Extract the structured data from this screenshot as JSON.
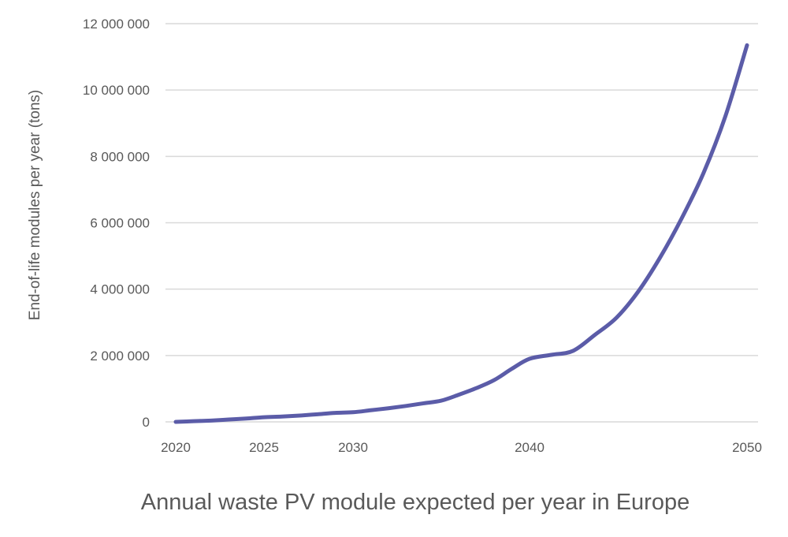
{
  "chart_data": {
    "type": "line",
    "title": "Annual waste PV module expected per year in Europe",
    "xlabel": "",
    "ylabel": "End-of-life modules per year (tons)",
    "ylim": [
      0,
      12000000
    ],
    "yticks": [
      0,
      2000000,
      4000000,
      6000000,
      8000000,
      10000000,
      12000000
    ],
    "ytick_labels": [
      "0",
      "2 000 000",
      "4 000 000",
      "6 000 000",
      "8 000 000",
      "10 000 000",
      "12 000 000"
    ],
    "xticks": [
      2020,
      2025,
      2030,
      2040,
      2050
    ],
    "xtick_labels": [
      "2020",
      "2025",
      "2030",
      "2040",
      "2050"
    ],
    "grid": "horizontal",
    "legend": "none",
    "line_color": "#5b5ca8",
    "grid_color": "#d9d9d9",
    "series": [
      {
        "x": [
          2020,
          2021,
          2022,
          2023,
          2024,
          2025,
          2026,
          2027,
          2028,
          2029,
          2030,
          2031,
          2032,
          2033,
          2034,
          2035,
          2036,
          2037,
          2038,
          2039,
          2040,
          2041,
          2042,
          2043,
          2044,
          2045,
          2046,
          2047,
          2048,
          2049,
          2050
        ],
        "values": [
          0,
          20000,
          40000,
          70000,
          100000,
          140000,
          160000,
          190000,
          230000,
          270000,
          290000,
          350000,
          410000,
          480000,
          560000,
          640000,
          820000,
          1020000,
          1260000,
          1600000,
          1900000,
          2020000,
          2140000,
          2620000,
          3140000,
          3930000,
          4950000,
          6140000,
          7500000,
          9200000,
          11350000
        ]
      }
    ]
  }
}
